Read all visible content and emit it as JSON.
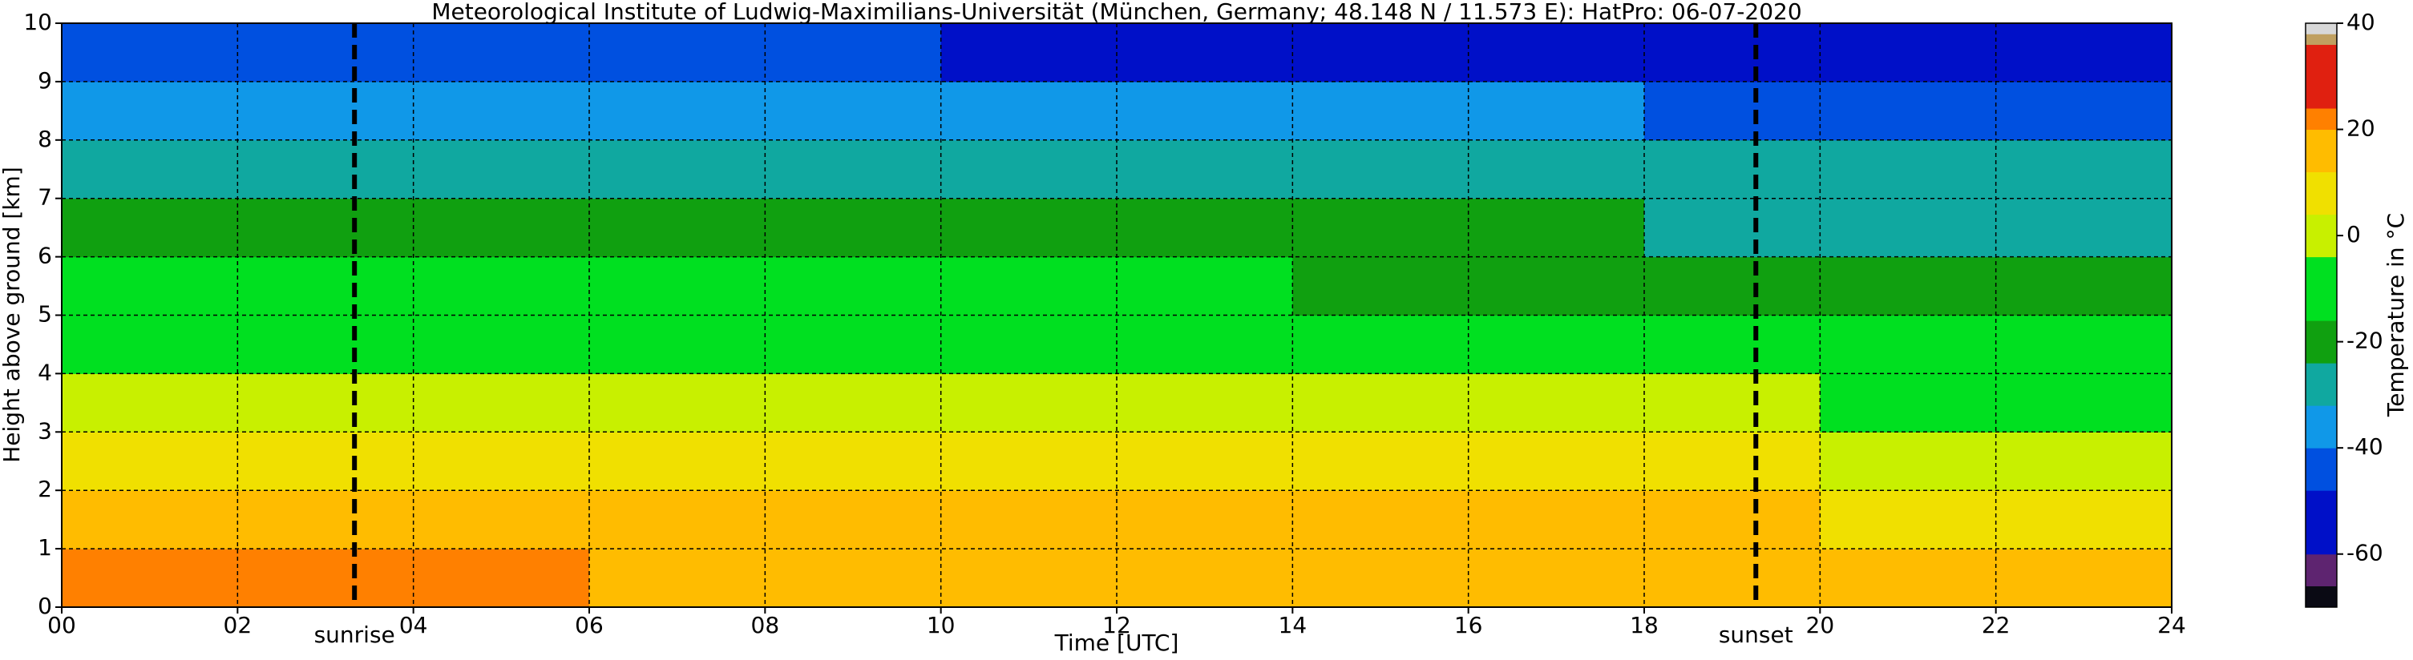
{
  "chart_data": {
    "type": "heatmap",
    "title": "Meteorological Institute of Ludwig-Maximilians-Universität (München, Germany; 48.148 N / 11.573 E):    HatPro: 06-07-2020",
    "x_label": "Time [UTC]",
    "y_label": "Height above ground [km]",
    "colorbar_label": "Temperature in °C",
    "xlim": [
      0,
      24
    ],
    "ylim": [
      0,
      10
    ],
    "xticks": [
      {
        "value": 0,
        "label": "00"
      },
      {
        "value": 2,
        "label": "02"
      },
      {
        "value": 4,
        "label": "04"
      },
      {
        "value": 6,
        "label": "06"
      },
      {
        "value": 8,
        "label": "08"
      },
      10,
      12,
      14,
      16,
      18,
      20,
      22,
      24
    ],
    "yticks": [
      0,
      1,
      2,
      3,
      4,
      5,
      6,
      7,
      8,
      9,
      10
    ],
    "grid": true,
    "x_edges": [
      0,
      2,
      4,
      6,
      8,
      10,
      12,
      14,
      16,
      18,
      20,
      22,
      24
    ],
    "y_edges": [
      0,
      1,
      2,
      3,
      4,
      5,
      6,
      7,
      8,
      9,
      10
    ],
    "z": [
      [
        21,
        20,
        21,
        19,
        17,
        17,
        17,
        17,
        18,
        17,
        16,
        16
      ],
      [
        15,
        14,
        15,
        14,
        13,
        13,
        13,
        13,
        13,
        12,
        10,
        9
      ],
      [
        8,
        8,
        8,
        7,
        6,
        5,
        5,
        5,
        5,
        4,
        3,
        2
      ],
      [
        0,
        0,
        -1,
        -2,
        -2,
        -3,
        -3,
        -3,
        -3,
        -4,
        -5,
        -5
      ],
      [
        -8,
        -8,
        -8,
        -8,
        -8,
        -9,
        -9,
        -9,
        -10,
        -11,
        -12,
        -12
      ],
      [
        -13,
        -13,
        -13,
        -14,
        -14,
        -15,
        -16,
        -17,
        -18,
        -19,
        -20,
        -20
      ],
      [
        -20,
        -20,
        -19,
        -19,
        -20,
        -21,
        -22,
        -23,
        -24,
        -25,
        -26,
        -26
      ],
      [
        -28,
        -28,
        -28,
        -28,
        -28,
        -29,
        -29,
        -30,
        -30,
        -31,
        -32,
        -32
      ],
      [
        -36,
        -36,
        -36,
        -36,
        -37,
        -38,
        -38,
        -39,
        -40,
        -41,
        -42,
        -43
      ],
      [
        -46,
        -46,
        -47,
        -47,
        -48,
        -49,
        -50,
        -50,
        -51,
        -52,
        -53,
        -53
      ]
    ],
    "vlines": [
      {
        "x": 3.33,
        "label": "sunrise"
      },
      {
        "x": 19.27,
        "label": "sunset"
      }
    ],
    "colorbar": {
      "lim": [
        -70,
        40
      ],
      "ticks": [
        -60,
        -40,
        -20,
        0,
        20,
        40
      ],
      "bounds": [
        -70,
        -66,
        -60,
        -48,
        -40,
        -32,
        -24,
        -16,
        -4,
        4,
        12,
        20,
        24,
        36,
        38,
        40
      ],
      "colors": [
        "#0a0a14",
        "#5e2470",
        "#0010c8",
        "#0050e0",
        "#1098e8",
        "#10a8a0",
        "#10a010",
        "#00e020",
        "#c8f000",
        "#f0e000",
        "#ffbc00",
        "#ff8000",
        "#e02010",
        "#c0a060",
        "#d8d8d8"
      ]
    }
  }
}
